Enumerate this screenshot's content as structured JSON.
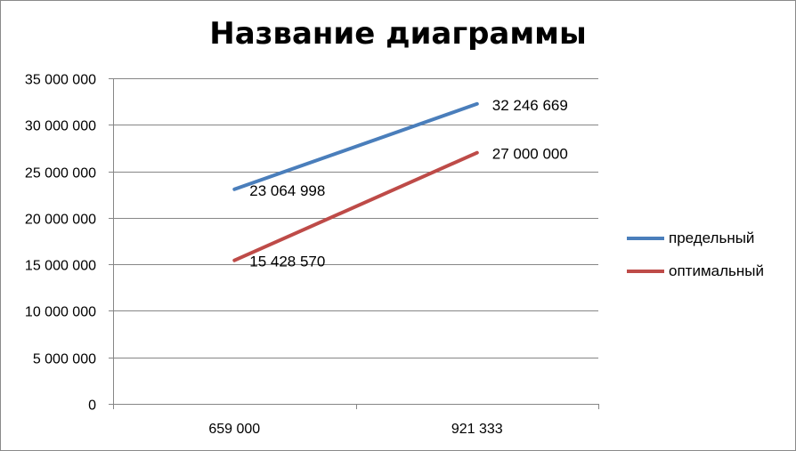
{
  "chart_data": {
    "type": "line",
    "title": "Название диаграммы",
    "xlabel": "",
    "ylabel": "",
    "categories": [
      "659 000",
      "921 333"
    ],
    "ylim": [
      0,
      35000000
    ],
    "y_ticks": [
      0,
      5000000,
      10000000,
      15000000,
      20000000,
      25000000,
      30000000,
      35000000
    ],
    "y_tick_labels": [
      "0",
      "5 000 000",
      "10 000 000",
      "15 000 000",
      "20 000 000",
      "25 000 000",
      "30 000 000",
      "35 000 000"
    ],
    "grid": true,
    "legend_position": "right",
    "series": [
      {
        "name": "предельный",
        "color": "#4a7ebb",
        "values": [
          23064998,
          32246669
        ],
        "data_labels": [
          "23 064 998",
          "32 246 669"
        ]
      },
      {
        "name": "оптимальный",
        "color": "#be4b48",
        "values": [
          15428570,
          27000000
        ],
        "data_labels": [
          "15 428 570",
          "27 000 000"
        ]
      }
    ]
  }
}
